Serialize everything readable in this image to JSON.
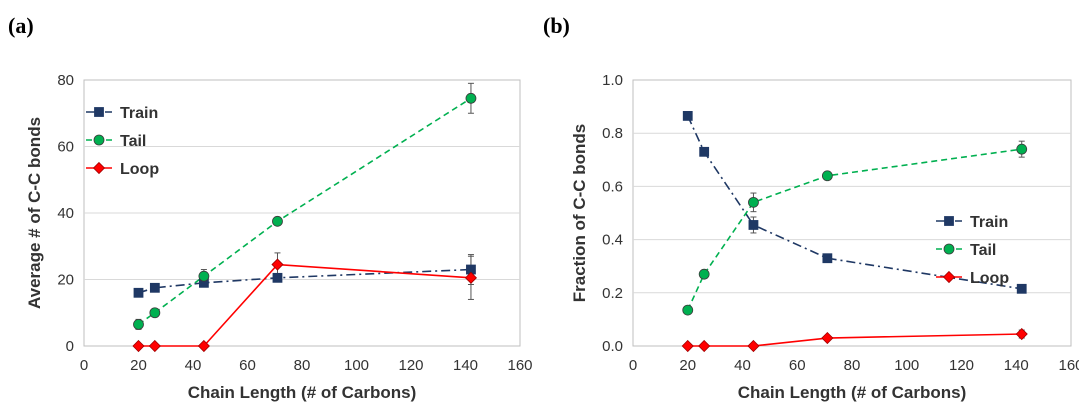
{
  "chart_data": [
    {
      "type": "line",
      "panel_label": "(a)",
      "xlabel": "Chain Length (# of Carbons)",
      "ylabel": "Average # of C-C bonds",
      "xlim": [
        0,
        160
      ],
      "ylim": [
        0,
        80
      ],
      "xticks": [
        0,
        20,
        40,
        60,
        80,
        100,
        120,
        140,
        160
      ],
      "yticks": [
        0,
        20,
        40,
        60,
        80
      ],
      "ytick_decimals": 0,
      "grid": "horizontal",
      "legend_position": "top-left",
      "series": [
        {
          "name": "Train",
          "color": "#1f3864",
          "dash": "dashdot",
          "marker": "square",
          "x": [
            20,
            26,
            44,
            71,
            142
          ],
          "y": [
            16,
            17.5,
            19,
            20.5,
            23
          ],
          "err": [
            0,
            0,
            1,
            0,
            4.5
          ]
        },
        {
          "name": "Tail",
          "color": "#00b050",
          "dash": "dash",
          "marker": "circle",
          "x": [
            20,
            26,
            44,
            71,
            142
          ],
          "y": [
            6.5,
            10,
            21,
            37.5,
            74.5
          ],
          "err": [
            1.5,
            0.5,
            2,
            0.5,
            4.5
          ]
        },
        {
          "name": "Loop",
          "color": "#ff0000",
          "dash": "solid",
          "marker": "diamond",
          "x": [
            20,
            26,
            44,
            71,
            142
          ],
          "y": [
            0,
            0,
            0,
            24.5,
            20.5
          ],
          "err": [
            0,
            0,
            0,
            3.5,
            6.5
          ]
        }
      ]
    },
    {
      "type": "line",
      "panel_label": "(b)",
      "xlabel": "Chain Length (# of Carbons)",
      "ylabel": "Fraction of C-C bonds",
      "xlim": [
        0,
        160
      ],
      "ylim": [
        0,
        1
      ],
      "xticks": [
        0,
        20,
        40,
        60,
        80,
        100,
        120,
        140,
        160
      ],
      "yticks": [
        0,
        0.2,
        0.4,
        0.6,
        0.8,
        1.0
      ],
      "ytick_decimals": 1,
      "grid": "horizontal",
      "legend_position": "middle-right",
      "series": [
        {
          "name": "Train",
          "color": "#1f3864",
          "dash": "dashdot",
          "marker": "square",
          "x": [
            20,
            26,
            44,
            71,
            142
          ],
          "y": [
            0.865,
            0.73,
            0.455,
            0.33,
            0.215
          ],
          "err": [
            0,
            0,
            0.03,
            0,
            0
          ]
        },
        {
          "name": "Tail",
          "color": "#00b050",
          "dash": "dash",
          "marker": "circle",
          "x": [
            20,
            26,
            44,
            71,
            142
          ],
          "y": [
            0.135,
            0.27,
            0.54,
            0.64,
            0.74
          ],
          "err": [
            0,
            0,
            0.035,
            0,
            0.03
          ]
        },
        {
          "name": "Loop",
          "color": "#ff0000",
          "dash": "solid",
          "marker": "diamond",
          "x": [
            20,
            26,
            44,
            71,
            142
          ],
          "y": [
            0,
            0,
            0,
            0.03,
            0.045
          ],
          "err": [
            0,
            0,
            0,
            0,
            0.015
          ]
        }
      ]
    }
  ]
}
